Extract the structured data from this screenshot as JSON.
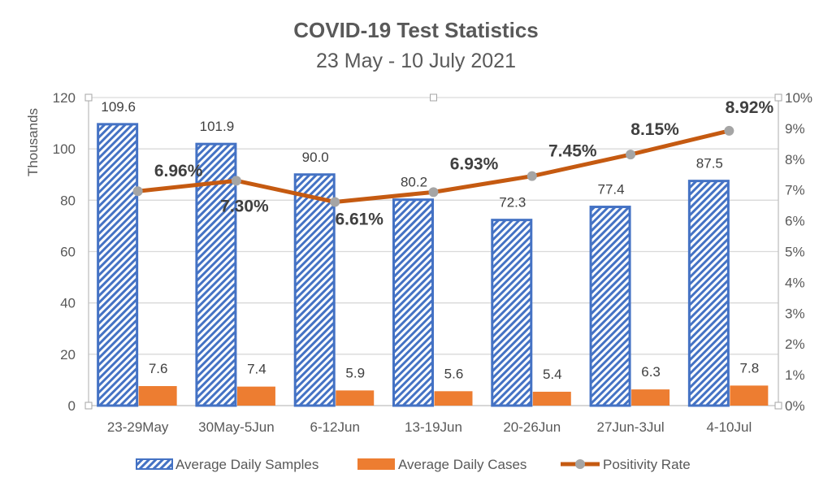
{
  "chart_data": {
    "type": "bar",
    "title": "COVID-19 Test Statistics",
    "subtitle": "23 May - 10 July 2021",
    "ylabel": "Thousands",
    "ylim": [
      0,
      120
    ],
    "yticks": [
      "0",
      "20",
      "40",
      "60",
      "80",
      "100",
      "120"
    ],
    "y2lim": [
      0,
      10
    ],
    "y2ticks": [
      "0%",
      "1%",
      "2%",
      "3%",
      "4%",
      "5%",
      "6%",
      "7%",
      "8%",
      "9%",
      "10%"
    ],
    "grid": true,
    "legend_position": "bottom",
    "categories": [
      "23-29May",
      "30May-5Jun",
      "6-12Jun",
      "13-19Jun",
      "20-26Jun",
      "27Jun-3Jul",
      "4-10Jul"
    ],
    "series": [
      {
        "name": "Average Daily Samples",
        "type": "bar",
        "axis": "left",
        "color": "#4472C4",
        "pattern": "diagonal-hatch",
        "values": [
          109.6,
          101.9,
          90.0,
          80.2,
          72.3,
          77.4,
          87.5
        ],
        "labels": [
          "109.6",
          "101.9",
          "90.0",
          "80.2",
          "72.3",
          "77.4",
          "87.5"
        ]
      },
      {
        "name": "Average Daily Cases",
        "type": "bar",
        "axis": "left",
        "color": "#ED7D31",
        "values": [
          7.6,
          7.4,
          5.9,
          5.6,
          5.4,
          6.3,
          7.8
        ],
        "labels": [
          "7.6",
          "7.4",
          "5.9",
          "5.6",
          "5.4",
          "6.3",
          "7.8"
        ]
      },
      {
        "name": "Positivity Rate",
        "type": "line",
        "axis": "right",
        "color": "#C55A11",
        "marker_color": "#A5A5A5",
        "values": [
          6.96,
          7.3,
          6.61,
          6.93,
          7.45,
          8.15,
          8.92
        ],
        "labels": [
          "6.96%",
          "7.30%",
          "6.61%",
          "6.93%",
          "7.45%",
          "8.15%",
          "8.92%"
        ]
      }
    ]
  }
}
